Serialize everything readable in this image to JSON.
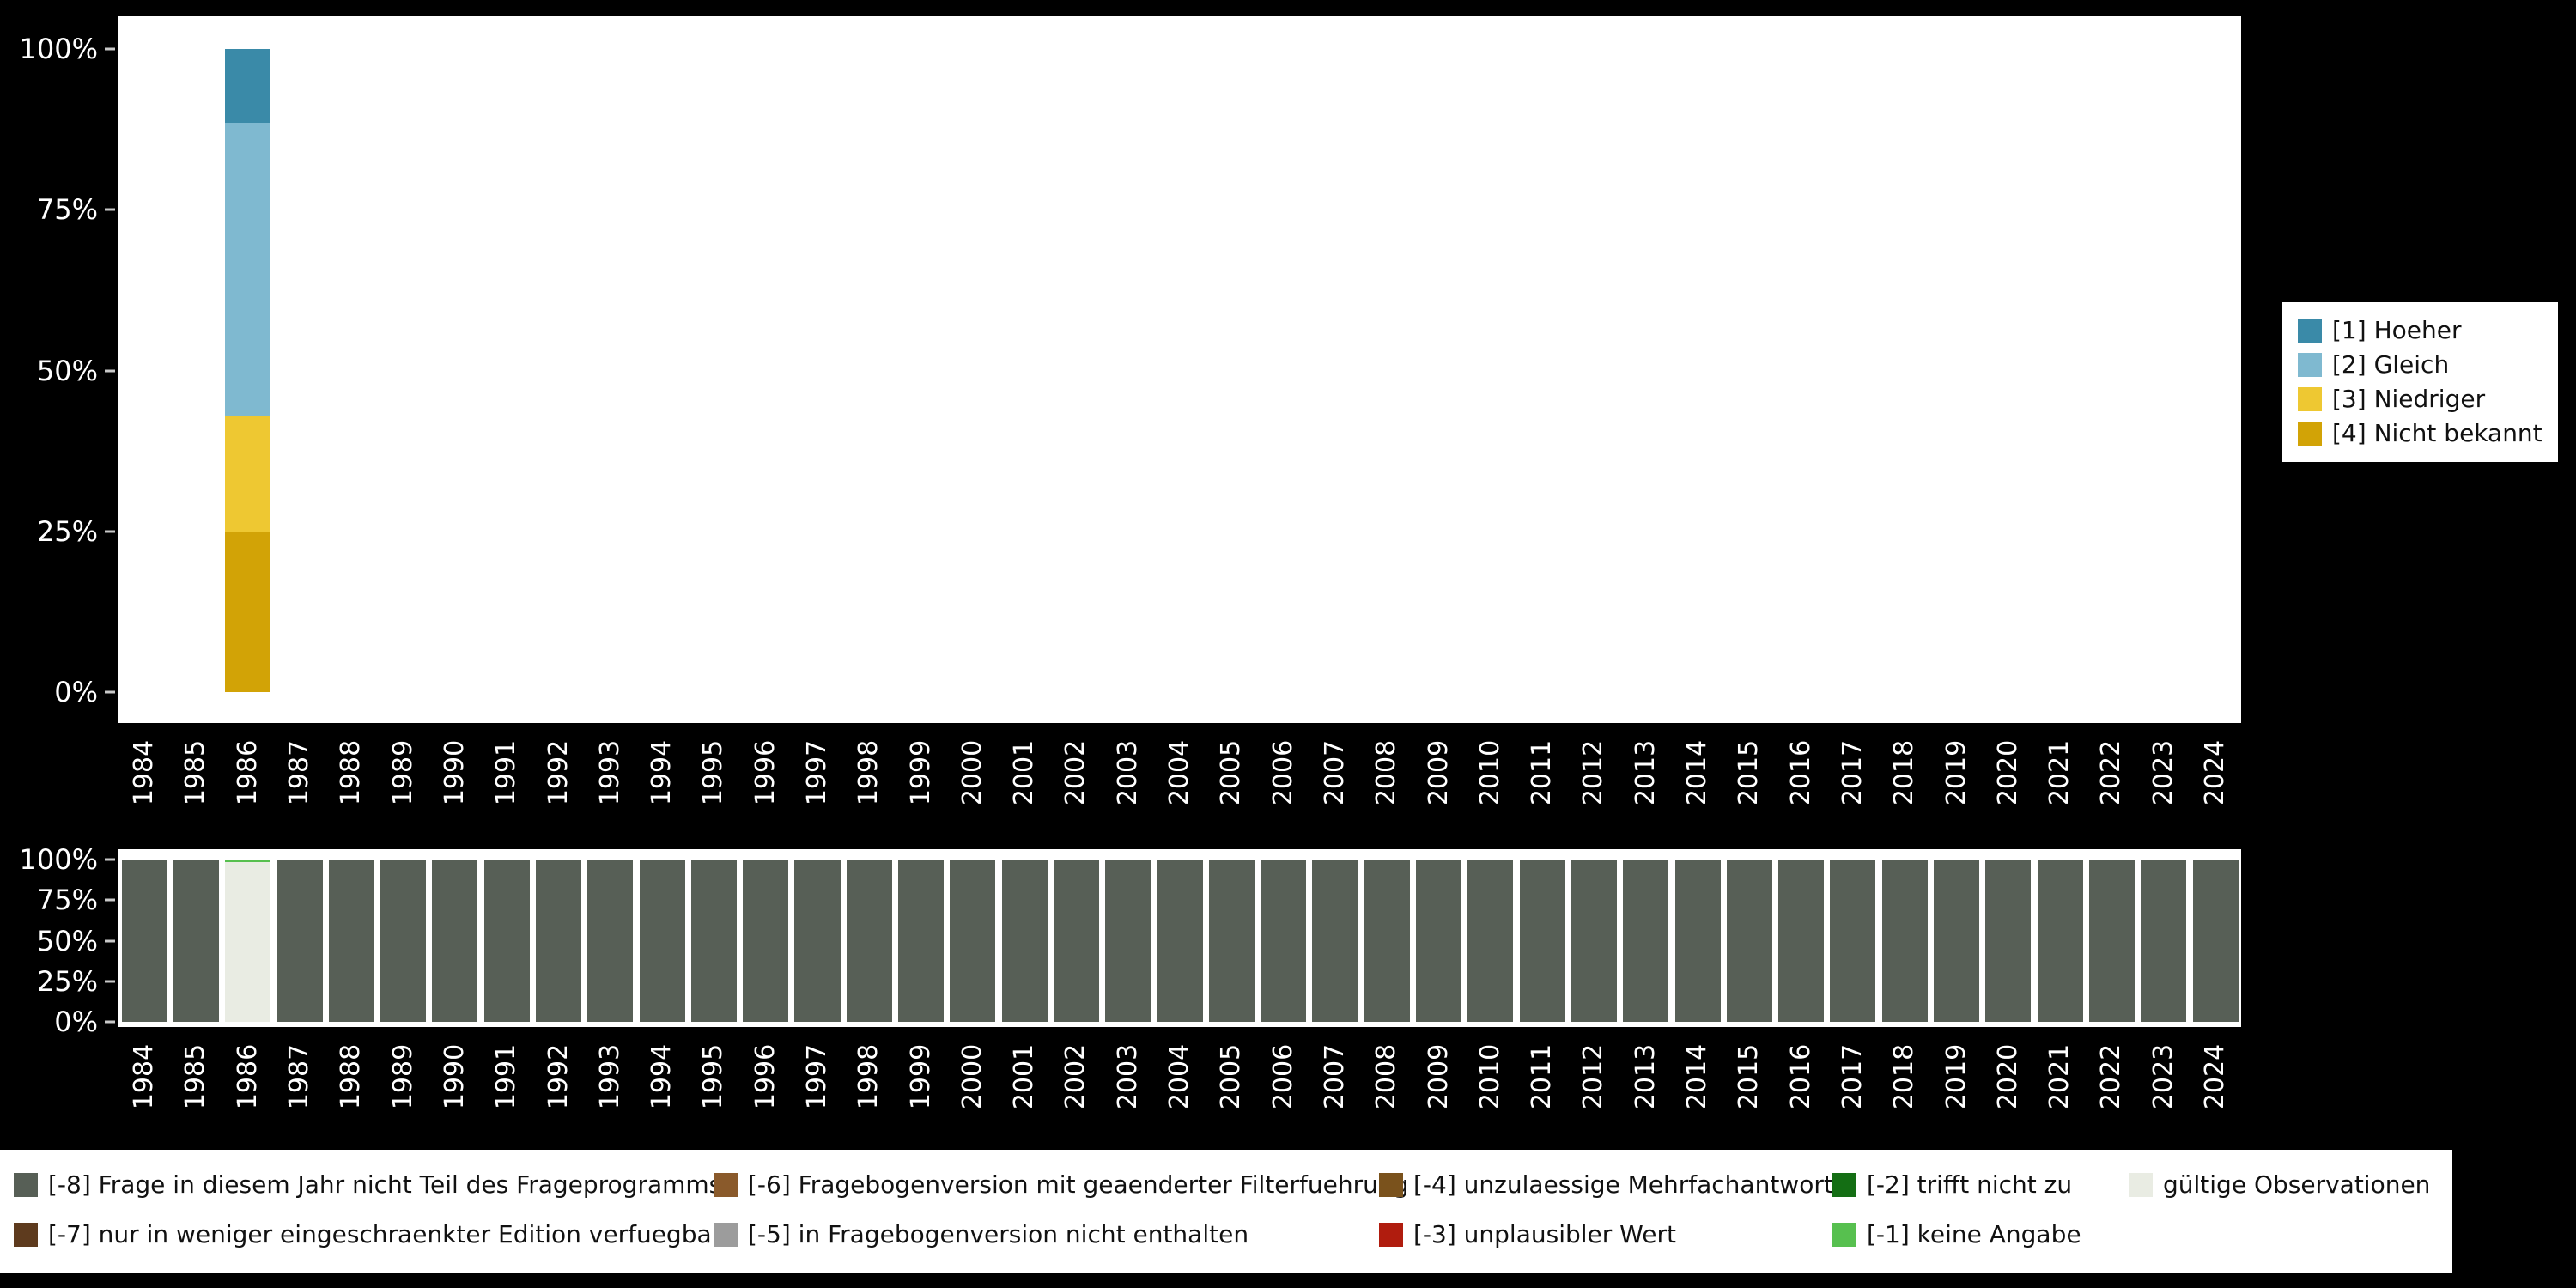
{
  "colors": {
    "background": "#000000",
    "panel": "#ffffff",
    "axis_text": "#ffffff"
  },
  "chart_data": [
    {
      "id": "variable-values",
      "type": "bar",
      "stacked": true,
      "title": "",
      "xlabel": "",
      "ylabel": "",
      "ylim": [
        0,
        100
      ],
      "grid": false,
      "legend_position": "right",
      "y_tick_labels": [
        "0%",
        "25%",
        "50%",
        "75%",
        "100%"
      ],
      "categories": [
        "1984",
        "1985",
        "1986",
        "1987",
        "1988",
        "1989",
        "1990",
        "1991",
        "1992",
        "1993",
        "1994",
        "1995",
        "1996",
        "1997",
        "1998",
        "1999",
        "2000",
        "2001",
        "2002",
        "2003",
        "2004",
        "2005",
        "2006",
        "2007",
        "2008",
        "2009",
        "2010",
        "2011",
        "2012",
        "2013",
        "2014",
        "2015",
        "2016",
        "2017",
        "2018",
        "2019",
        "2020",
        "2021",
        "2022",
        "2023",
        "2024"
      ],
      "series": [
        {
          "name": "[1] Hoeher",
          "color": "#3a8aa8",
          "values": {
            "1986": 11.5
          }
        },
        {
          "name": "[2] Gleich",
          "color": "#7fb9d0",
          "values": {
            "1986": 45.5
          }
        },
        {
          "name": "[3] Niedriger",
          "color": "#eec832",
          "values": {
            "1986": 18
          }
        },
        {
          "name": "[4] Nicht bekannt",
          "color": "#d2a306",
          "values": {
            "1986": 25
          }
        }
      ]
    },
    {
      "id": "missing-values",
      "type": "bar",
      "stacked": true,
      "title": "",
      "xlabel": "",
      "ylabel": "",
      "ylim": [
        0,
        100
      ],
      "grid": false,
      "legend_position": "bottom",
      "y_tick_labels": [
        "0%",
        "25%",
        "50%",
        "75%",
        "100%"
      ],
      "categories": [
        "1984",
        "1985",
        "1986",
        "1987",
        "1988",
        "1989",
        "1990",
        "1991",
        "1992",
        "1993",
        "1994",
        "1995",
        "1996",
        "1997",
        "1998",
        "1999",
        "2000",
        "2001",
        "2002",
        "2003",
        "2004",
        "2005",
        "2006",
        "2007",
        "2008",
        "2009",
        "2010",
        "2011",
        "2012",
        "2013",
        "2014",
        "2015",
        "2016",
        "2017",
        "2018",
        "2019",
        "2020",
        "2021",
        "2022",
        "2023",
        "2024"
      ],
      "series": [
        {
          "name": "[-8] Frage in diesem Jahr nicht Teil des Frageprogramms",
          "color": "#575f56",
          "values": {
            "default": 100,
            "1986": 0
          }
        },
        {
          "name": "[-1] keine Angabe",
          "color": "#57c04f",
          "values": {
            "1986": 1.5
          }
        },
        {
          "name": "gültige Observationen",
          "color": "#e9ece3",
          "values": {
            "1986": 98.5
          }
        }
      ]
    }
  ],
  "legends": {
    "main": {
      "items": [
        {
          "label": "[1] Hoeher",
          "color": "#3a8aa8"
        },
        {
          "label": "[2] Gleich",
          "color": "#7fb9d0"
        },
        {
          "label": "[3] Niedriger",
          "color": "#eec832"
        },
        {
          "label": "[4] Nicht bekannt",
          "color": "#d2a306"
        }
      ]
    },
    "missing": {
      "columns": [
        [
          {
            "label": "[-8] Frage in diesem Jahr nicht Teil des Frageprogramms",
            "color": "#575f56"
          },
          {
            "label": "[-7] nur in weniger eingeschraenkter Edition verfuegbar",
            "color": "#5e3b1e"
          }
        ],
        [
          {
            "label": "[-6] Fragebogenversion mit geaenderter Filterfuehrung",
            "color": "#8a5a2b"
          },
          {
            "label": "[-5] in Fragebogenversion nicht enthalten",
            "color": "#9c9c9c"
          }
        ],
        [
          {
            "label": "[-4] unzulaessige Mehrfachantwort",
            "color": "#7a521c"
          },
          {
            "label": "[-3] unplausibler Wert",
            "color": "#b01c0e"
          }
        ],
        [
          {
            "label": "[-2] trifft nicht zu",
            "color": "#146e14"
          },
          {
            "label": "[-1] keine Angabe",
            "color": "#57c04f"
          }
        ],
        [
          {
            "label": "gültige Observationen",
            "color": "#e9ece3"
          }
        ]
      ]
    }
  }
}
